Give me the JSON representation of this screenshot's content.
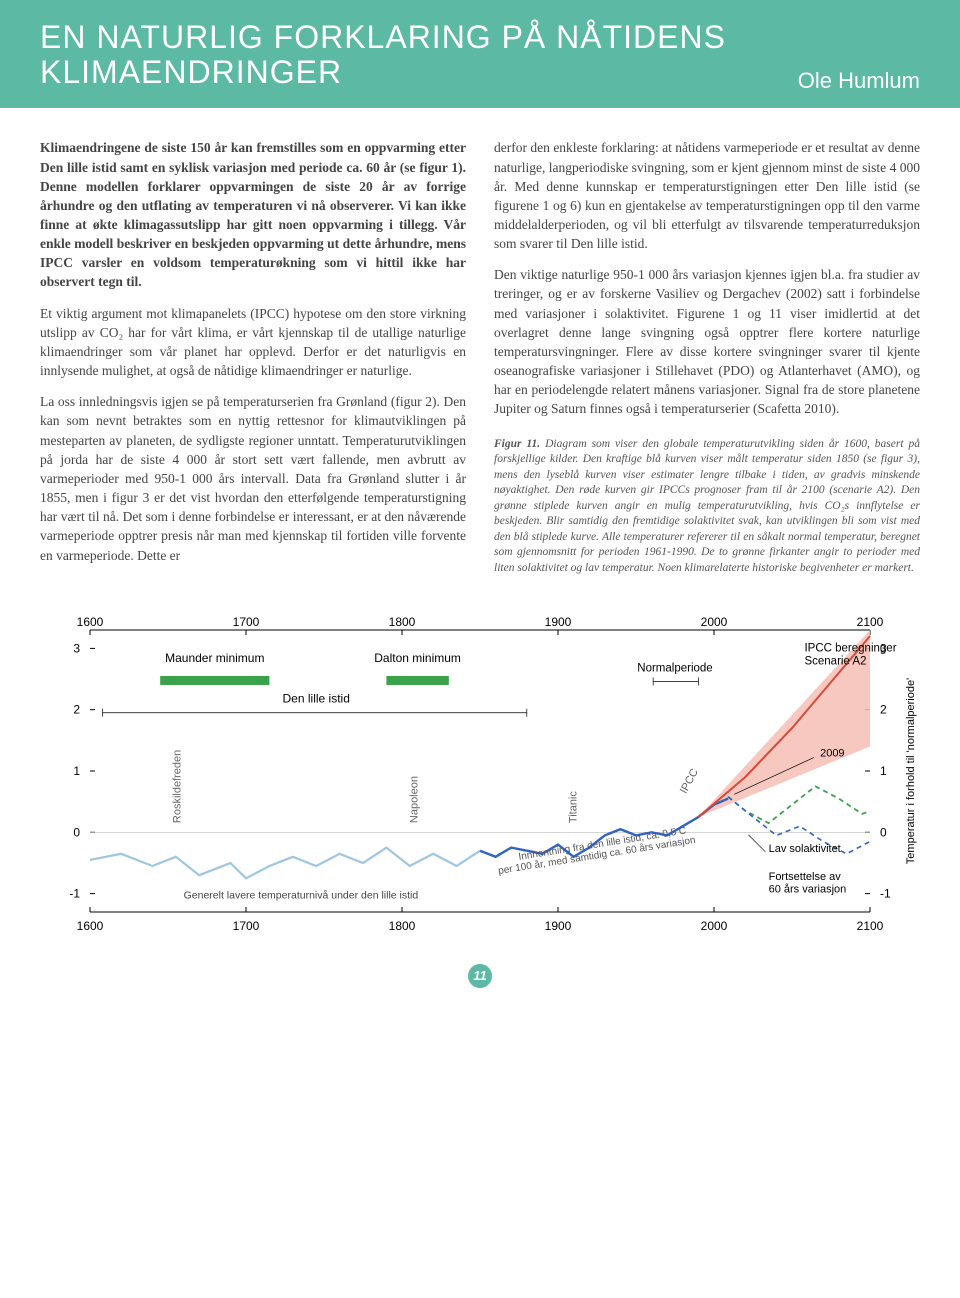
{
  "banner": {
    "title_l1": "EN NATURLIG FORKLARING PÅ NÅTIDENS",
    "title_l2": "KLIMAENDRINGER",
    "author": "Ole Humlum",
    "bg": "#5bb9a4",
    "fg": "#ffffff"
  },
  "col_left": {
    "p1": "Klimaendringene de siste 150 år kan fremstilles som en oppvarming etter Den lille istid samt en syklisk variasjon med periode ca. 60 år (se figur 1). Denne modellen forklarer oppvarmingen de siste 20 år av forrige århundre og den utflating av temperaturen vi nå observerer. Vi kan ikke finne at økte klimagassutslipp har gitt noen oppvarming i tillegg. Vår enkle modell beskriver en beskjeden oppvarming ut dette århundre, mens IPCC varsler en voldsom temperaturøkning som vi hittil ikke har observert tegn til.",
    "p2": "Et viktig argument mot klimapanelets (IPCC) hypotese om den store virkning utslipp av CO₂ har for vårt klima, er vårt kjennskap til de utallige naturlige klimaendringer som vår planet har opplevd. Derfor er det naturligvis en innlysende mulighet, at også de nåtidige klimaendringer er naturlige.",
    "p3": "La oss innledningsvis igjen se på temperaturserien fra Grønland (figur 2). Den kan som nevnt betraktes som en nyttig rettesnor for klimautviklingen på mesteparten av planeten, de sydligste regioner unntatt. Temperaturutviklingen på jorda har de siste 4 000 år stort sett vært fallende, men avbrutt av varmeperioder med 950-1 000 års intervall. Data fra Grønland slutter i år 1855, men i figur 3 er det vist hvordan den etterfølgende temperaturstigning har vært til nå. Det som i denne forbindelse er interessant, er at den nåværende varmeperiode opptrer presis når man med kjennskap til fortiden ville forvente en varmeperiode. Dette er"
  },
  "col_right": {
    "p1": "derfor den enkleste forklaring: at nåtidens varmeperiode er et resultat av denne naturlige, langperiodiske svingning, som er kjent gjennom minst de siste 4 000 år. Med denne kunnskap er temperaturstigningen etter Den lille istid (se figurene 1 og 6) kun en gjentakelse av temperaturstigningen opp til den varme middelalderperioden, og vil bli etterfulgt av tilsvarende temperaturreduksjon som svarer til Den lille istid.",
    "p2": "Den viktige naturlige 950-1 000 års variasjon kjennes igjen bl.a. fra studier av treringer, og er av forskerne Vasiliev og Dergachev (2002) satt i forbindelse med variasjoner i solaktivitet. Figurene 1 og 11 viser imidlertid at det overlagret denne lange svingning også opptrer flere kortere naturlige temperatursvingninger. Flere av disse kortere svingninger svarer til kjente oseanografiske variasjoner i Stillehavet (PDO) og Atlanterhavet (AMO), og har en periodelengde relatert månens variasjoner. Signal fra de store planetene Jupiter og Saturn finnes også i temperaturserier (Scafetta 2010).",
    "figcap_head": "Figur 11.",
    "figcap": " Diagram som viser den globale temperaturutvikling siden år 1600, basert på forskjellige kilder. Den kraftige blå kurven viser målt temperatur siden 1850 (se figur 3), mens den lyseblå kurven viser estimater lengre tilbake i tiden, av gradvis minskende nøyaktighet. Den røde kurven gir IPCCs prognoser fram til år 2100 (scenarie A2). Den grønne stiplede kurven angir en mulig temperaturutvikling, hvis CO₂s innflytelse er beskjeden. Blir samtidig den fremtidige solaktivitet svak, kan utviklingen bli som vist med den blå stiplede kurve. Alle temperaturer refererer til en såkalt normal temperatur, beregnet som gjennomsnitt for perioden 1961-1990. De to grønne firkanter angir to perioder med liten solaktivitet og lav temperatur. Noen klimarelaterte historiske begivenheter er markert."
  },
  "chart": {
    "type": "line",
    "x_range": [
      1600,
      2100
    ],
    "y_range": [
      -1.3,
      3.3
    ],
    "x_ticks": [
      1600,
      1700,
      1800,
      1900,
      2000,
      2100
    ],
    "y_ticks": [
      -1,
      0,
      1,
      2,
      3
    ],
    "y_label_right": "Temperatur i forhold til 'normalperiode'",
    "colors": {
      "axis": "#000000",
      "light_blue": "#9fc6e0",
      "blue": "#2f63c4",
      "green": "#3aa24a",
      "green_bar": "#3aa24a",
      "red": "#d64a3a",
      "red_fan": "#f6beb4",
      "text": "#444444",
      "tick_text": "#000000"
    },
    "series": {
      "estimate_lightblue": [
        [
          1600,
          -0.45
        ],
        [
          1620,
          -0.35
        ],
        [
          1640,
          -0.55
        ],
        [
          1655,
          -0.4
        ],
        [
          1670,
          -0.7
        ],
        [
          1690,
          -0.5
        ],
        [
          1700,
          -0.75
        ],
        [
          1715,
          -0.55
        ],
        [
          1730,
          -0.4
        ],
        [
          1745,
          -0.55
        ],
        [
          1760,
          -0.35
        ],
        [
          1775,
          -0.5
        ],
        [
          1790,
          -0.25
        ],
        [
          1805,
          -0.55
        ],
        [
          1820,
          -0.35
        ],
        [
          1835,
          -0.55
        ],
        [
          1850,
          -0.3
        ]
      ],
      "measured_blue": [
        [
          1850,
          -0.3
        ],
        [
          1860,
          -0.4
        ],
        [
          1870,
          -0.25
        ],
        [
          1880,
          -0.3
        ],
        [
          1890,
          -0.35
        ],
        [
          1900,
          -0.2
        ],
        [
          1910,
          -0.4
        ],
        [
          1920,
          -0.25
        ],
        [
          1930,
          -0.05
        ],
        [
          1940,
          0.05
        ],
        [
          1950,
          -0.05
        ],
        [
          1960,
          -0.0
        ],
        [
          1970,
          -0.05
        ],
        [
          1980,
          0.1
        ],
        [
          1990,
          0.25
        ],
        [
          2000,
          0.45
        ],
        [
          2009,
          0.55
        ]
      ],
      "ipcc_red_center": [
        [
          1990,
          0.25
        ],
        [
          2020,
          0.9
        ],
        [
          2050,
          1.7
        ],
        [
          2080,
          2.6
        ],
        [
          2100,
          3.2
        ]
      ],
      "ipcc_fan_upper": [
        [
          1990,
          0.25
        ],
        [
          2100,
          3.3
        ]
      ],
      "ipcc_fan_lower": [
        [
          1990,
          0.25
        ],
        [
          2100,
          1.4
        ]
      ],
      "green_dash": [
        [
          2009,
          0.58
        ],
        [
          2020,
          0.35
        ],
        [
          2035,
          0.15
        ],
        [
          2050,
          0.45
        ],
        [
          2065,
          0.75
        ],
        [
          2080,
          0.55
        ],
        [
          2095,
          0.3
        ],
        [
          2100,
          0.35
        ]
      ],
      "blue_dash": [
        [
          2009,
          0.58
        ],
        [
          2025,
          0.25
        ],
        [
          2040,
          -0.05
        ],
        [
          2055,
          0.1
        ],
        [
          2070,
          -0.15
        ],
        [
          2085,
          -0.35
        ],
        [
          2100,
          -0.15
        ]
      ]
    },
    "bars": {
      "maunder": {
        "x0": 1645,
        "x1": 1715,
        "label": "Maunder minimum"
      },
      "dalton": {
        "x0": 1790,
        "x1": 1830,
        "label": "Dalton minimum"
      }
    },
    "labels": {
      "lille_istid": "Den lille istid",
      "generelt": "Generelt lavere temperaturnivå under den lille istid",
      "roskilde": "Roskildefreden",
      "napoleon": "Napoleon",
      "titanic": "Titanic",
      "ipcc": "IPCC",
      "normalperiode": "Normalperiode",
      "ipcc_beregn": "IPCC beregninger",
      "scenarie": "Scenarie A2",
      "y2009": "2009",
      "lav_sol": "Lav solaktivitet",
      "forts1": "Fortsettelse av",
      "forts2": "60 års variasjon",
      "innhent1": "Innhentning fra den lille istid, ca. 0,5 C",
      "innhent2": "per 100 år, med samtidig ca. 60 års variasjon"
    }
  },
  "page_number": "11"
}
